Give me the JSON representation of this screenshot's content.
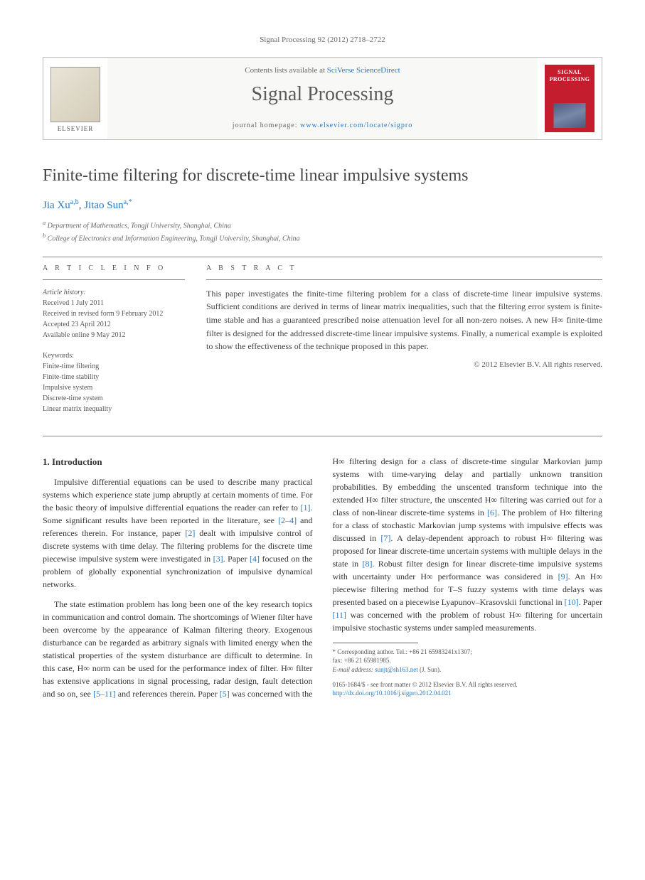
{
  "header": {
    "citation": "Signal Processing 92 (2012) 2718–2722"
  },
  "pubbox": {
    "contents_prefix": "Contents lists available at ",
    "contents_link": "SciVerse ScienceDirect",
    "journal": "Signal Processing",
    "homepage_prefix": "journal homepage: ",
    "homepage_url": "www.elsevier.com/locate/sigpro",
    "publisher": "ELSEVIER",
    "cover_text": "SIGNAL PROCESSING"
  },
  "title": "Finite-time filtering for discrete-time linear impulsive systems",
  "authors_html": {
    "a1_name": "Jia Xu",
    "a1_sup": "a,b",
    "a2_name": "Jitao Sun",
    "a2_sup": "a,*",
    "sep": ", "
  },
  "affiliations": {
    "a": "Department of Mathematics, Tongji University, Shanghai, China",
    "b": "College of Electronics and Information Engineering, Tongji University, Shanghai, China"
  },
  "labels": {
    "article_info": "A R T I C L E   I N F O",
    "abstract": "A B S T R A C T",
    "history_head": "Article history:",
    "keywords_head": "Keywords:"
  },
  "history": {
    "received": "Received 1 July 2011",
    "revised": "Received in revised form 9 February 2012",
    "accepted": "Accepted 23 April 2012",
    "online": "Available online 9 May 2012"
  },
  "keywords": [
    "Finite-time filtering",
    "Finite-time stability",
    "Impulsive system",
    "Discrete-time system",
    "Linear matrix inequality"
  ],
  "abstract": "This paper investigates the finite-time filtering problem for a class of discrete-time linear impulsive systems. Sufficient conditions are derived in terms of linear matrix inequalities, such that the filtering error system is finite-time stable and has a guaranteed prescribed noise attenuation level for all non-zero noises. A new H∞ finite-time filter is designed for the addressed discrete-time linear impulsive systems. Finally, a numerical example is exploited to show the effectiveness of the technique proposed in this paper.",
  "copyright": "© 2012 Elsevier B.V. All rights reserved.",
  "section1": {
    "heading": "1. Introduction",
    "p1a": "Impulsive differential equations can be used to describe many practical systems which experience state jump abruptly at certain moments of time. For the basic theory of impulsive differential equations the reader can refer to ",
    "r1": "[1]",
    "p1b": ". Some significant results have been reported in the literature, see ",
    "r2": "[2–4]",
    "p1c": " and references therein. For instance, paper ",
    "r3": "[2]",
    "p1d": " dealt with impulsive control of discrete systems with time delay. The filtering problems for the discrete time piecewise impulsive system were investigated in ",
    "r4": "[3]",
    "p1e": ". Paper ",
    "r5": "[4]",
    "p1f": " focused on the problem of globally exponential synchronization of impulsive dynamical networks.",
    "p2a": "The state estimation problem has long been one of the key research topics in communication and control domain. The shortcomings of Wiener filter have been overcome by the appearance of Kalman filtering theory. Exogenous disturbance can be regarded as arbitrary signals with limited energy when the statistical properties of the system disturbance are difficult to determine. In this case, H∞ norm can be used for the performance index of filter. H∞ filter has extensive applications in signal processing, radar design, fault detection and so on, see ",
    "r6": "[5–11]",
    "p2b": " and references therein. Paper ",
    "r7": "[5]",
    "p2c": " was concerned with the H∞ filtering design for a class of discrete-time singular Markovian jump systems with time-varying delay and partially unknown transition probabilities. By embedding the unscented transform technique into the extended H∞ filter structure, the unscented H∞ filtering was carried out for a class of non-linear discrete-time systems in ",
    "r8": "[6]",
    "p2d": ". The problem of H∞ filtering for a class of stochastic Markovian jump systems with impulsive effects was discussed in ",
    "r9": "[7]",
    "p2e": ". A delay-dependent approach to robust H∞ filtering was proposed for linear discrete-time uncertain systems with multiple delays in the state in ",
    "r10": "[8]",
    "p2f": ". Robust filter design for linear discrete-time impulsive systems with uncertainty under H∞ performance was considered in ",
    "r11": "[9]",
    "p2g": ". An H∞ piecewise filtering method for T–S fuzzy systems with time delays was presented based on a piecewise Lyapunov–Krasovskii functional in ",
    "r12": "[10]",
    "p2h": ". Paper ",
    "r13": "[11]",
    "p2i": " was concerned with the problem of robust H∞ filtering for uncertain impulsive stochastic systems under sampled measurements."
  },
  "footnotes": {
    "corr_label": "* Corresponding author. Tel.: +86 21 65983241x1307;",
    "fax": "fax: +86 21 65981985.",
    "email_label": "E-mail address: ",
    "email": "sunjt@sh163.net",
    "email_who": " (J. Sun)."
  },
  "bottom": {
    "issn": "0165-1684/$ - see front matter © 2012 Elsevier B.V. All rights reserved.",
    "doi": "http://dx.doi.org/10.1016/j.sigpro.2012.04.021"
  }
}
